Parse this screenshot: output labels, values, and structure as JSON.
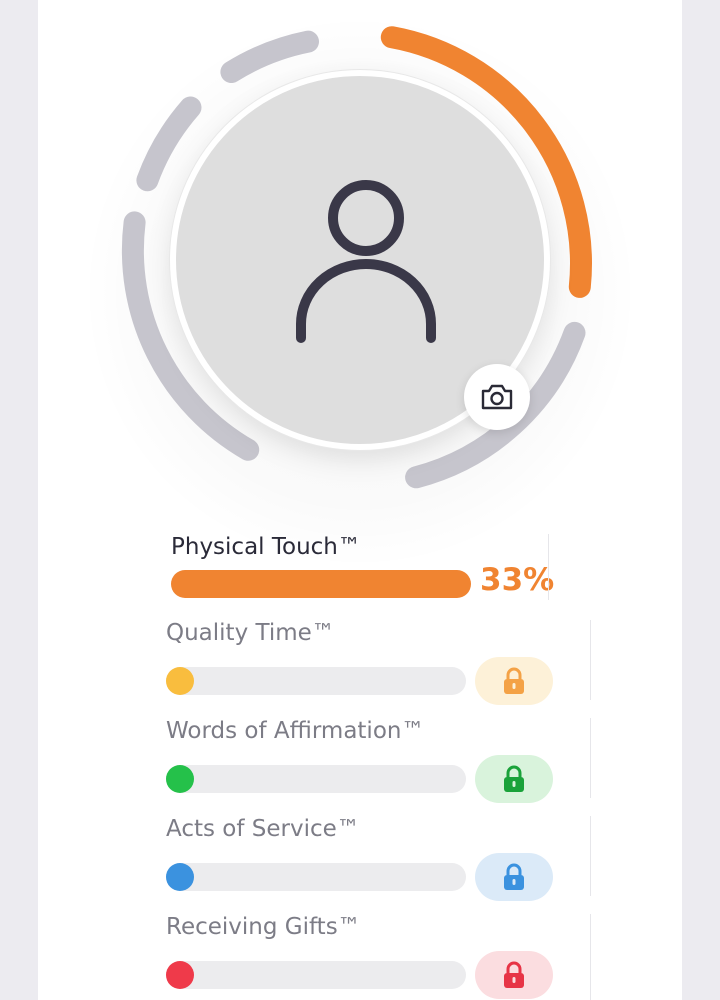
{
  "colors": {
    "accent": "#f08431",
    "ring_inactive": "#c6c5cd",
    "quality_time": "#f9bd3e",
    "words_of_affirmation": "#25c14a",
    "acts_of_service": "#3b92df",
    "receiving_gifts": "#ef3a4a"
  },
  "profile": {
    "avatar_icon": "person-icon",
    "camera_icon": "camera-icon"
  },
  "love_languages": {
    "active": {
      "label": "Physical Touch™",
      "percent_label": "33%",
      "percent": 33
    },
    "locked": [
      {
        "label": "Quality Time™",
        "dot_color": "#f9bd3e",
        "lock_bg": "#fdf1d8",
        "lock_color": "#f4a246",
        "icon": "lock-icon"
      },
      {
        "label": "Words of Affirmation™",
        "dot_color": "#25c14a",
        "lock_bg": "#d9f3dc",
        "lock_color": "#1aa23a",
        "icon": "lock-icon"
      },
      {
        "label": "Acts of Service™",
        "dot_color": "#3b92df",
        "lock_bg": "#dbeaf8",
        "lock_color": "#3b92df",
        "icon": "lock-icon"
      },
      {
        "label": "Receiving Gifts™",
        "dot_color": "#ef3a4a",
        "lock_bg": "#fbdde0",
        "lock_color": "#e73446",
        "icon": "lock-icon"
      }
    ]
  }
}
